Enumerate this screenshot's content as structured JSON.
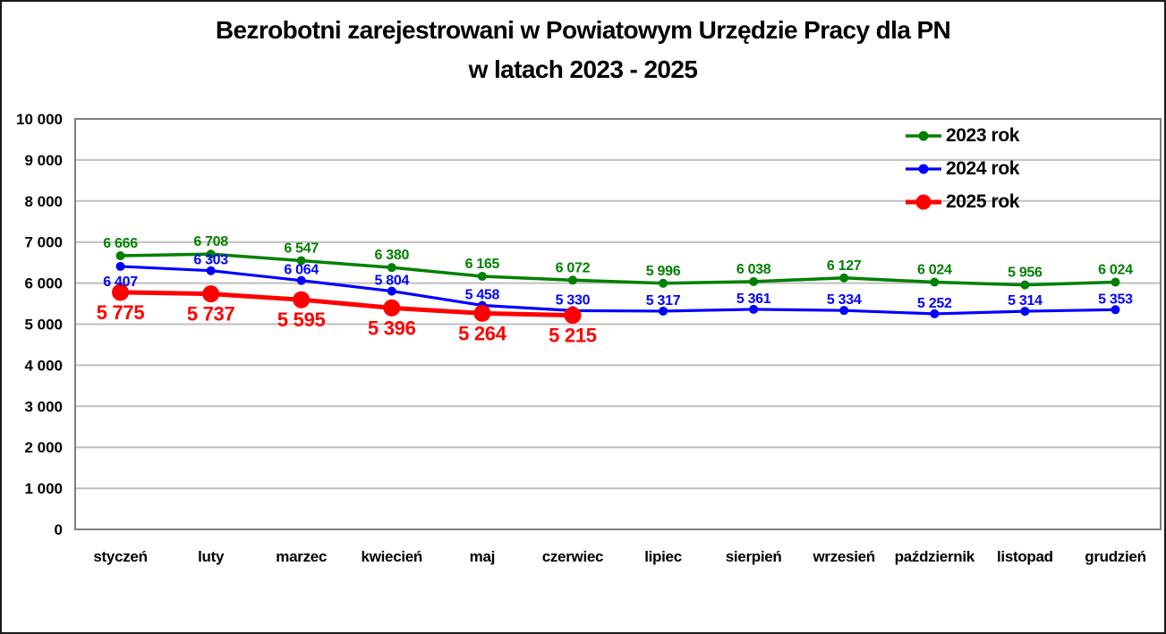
{
  "title": {
    "line1": "Bezrobotni zarejestrowani w Powiatowym Urzędzie Pracy dla PN",
    "line2": "w latach 2023 - 2025"
  },
  "chart_data": {
    "type": "line",
    "title": "Bezrobotni zarejestrowani w Powiatowym Urzędzie Pracy dla PN w latach 2023 - 2025",
    "categories": [
      "styczeń",
      "luty",
      "marzec",
      "kwiecień",
      "maj",
      "czerwiec",
      "lipiec",
      "sierpień",
      "wrzesień",
      "październik",
      "listopad",
      "grudzień"
    ],
    "series": [
      {
        "name": "2023 rok",
        "color": "#008000",
        "values": [
          6666,
          6708,
          6547,
          6380,
          6165,
          6072,
          5996,
          6038,
          6127,
          6024,
          5956,
          6024
        ]
      },
      {
        "name": "2024 rok",
        "color": "#0000FF",
        "values": [
          6407,
          6303,
          6064,
          5804,
          5458,
          5330,
          5317,
          5361,
          5334,
          5252,
          5314,
          5353
        ]
      },
      {
        "name": "2025 rok",
        "color": "#FF0000",
        "values": [
          5775,
          5737,
          5595,
          5396,
          5264,
          5215
        ]
      }
    ],
    "ylim": [
      0,
      10000
    ],
    "y_step": 1000,
    "grid": true,
    "legend_position": "top-right",
    "xlabel": "",
    "ylabel": "",
    "colors": {
      "grid": "#BFBFBF",
      "plot_border": "#7F7F7F",
      "text": "#000000",
      "background": "#FFFFFF"
    }
  }
}
